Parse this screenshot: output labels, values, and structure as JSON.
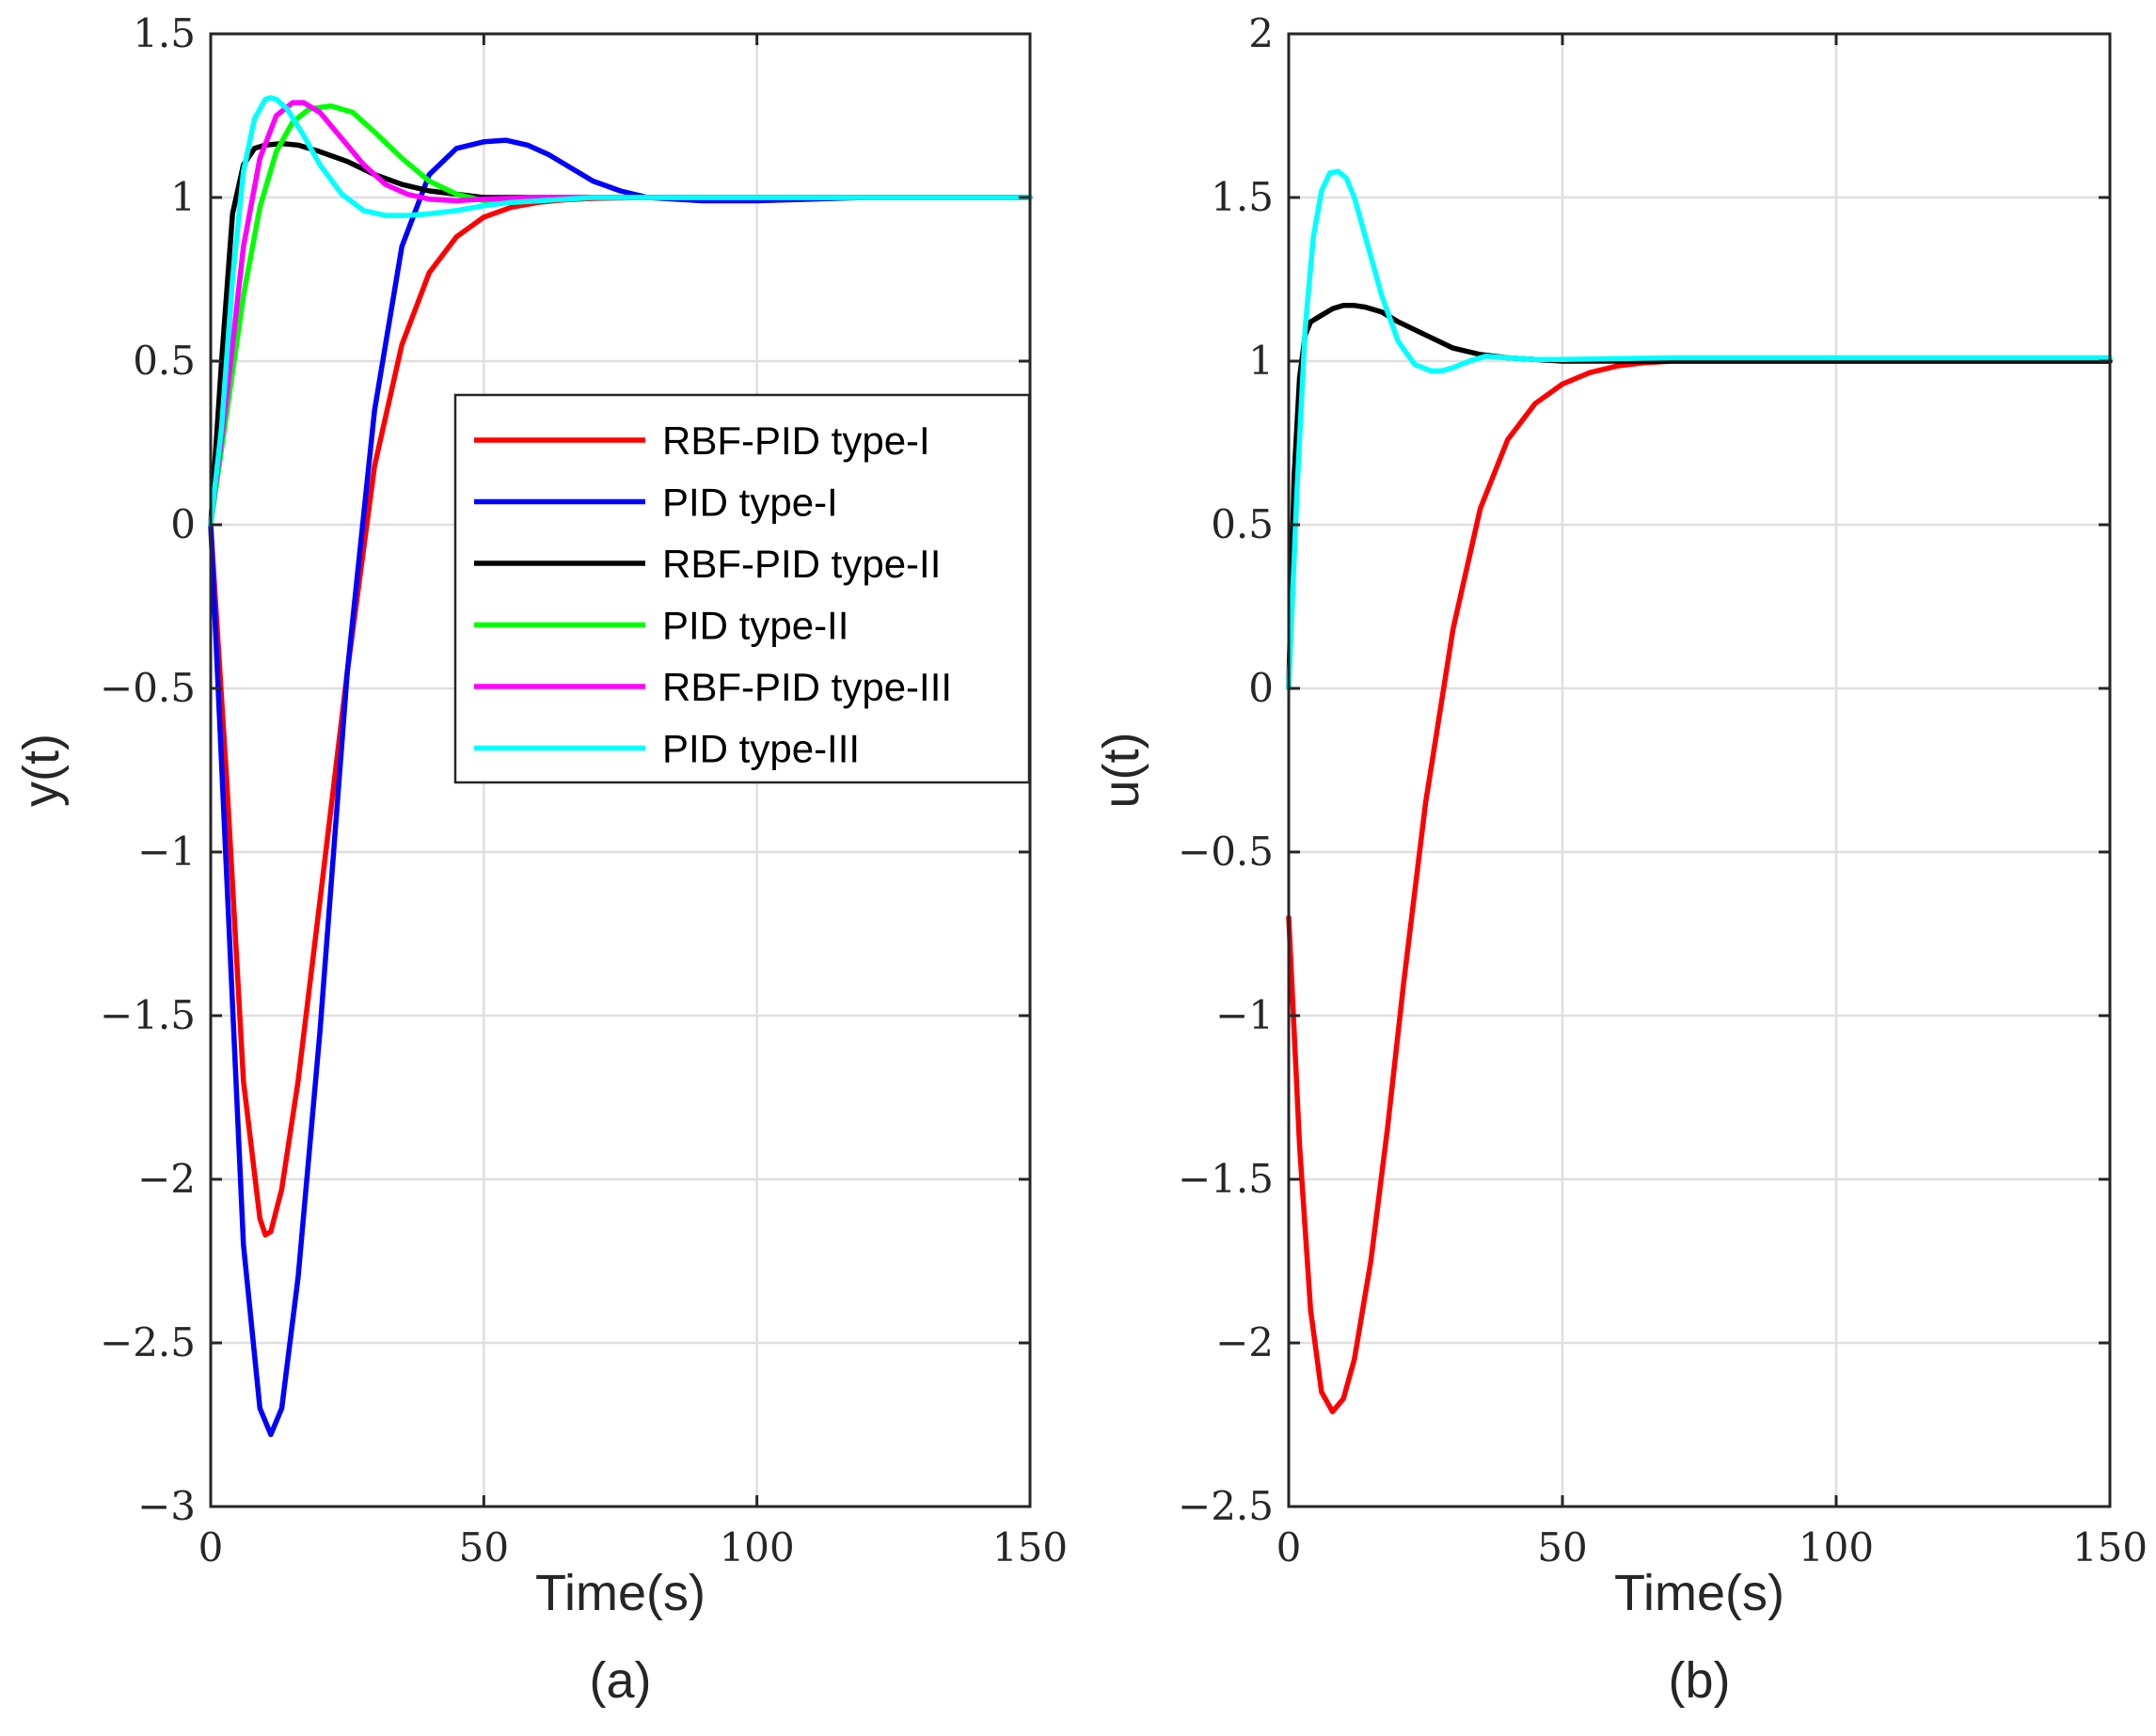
{
  "chart_data": [
    {
      "type": "line",
      "panel": "a",
      "caption": "(a)",
      "xlabel": "Time(s)",
      "ylabel": "y(t)",
      "xlim": [
        0,
        150
      ],
      "ylim": [
        -3,
        1.5
      ],
      "xticks": [
        0,
        50,
        100,
        150
      ],
      "xtick_labels": [
        "0",
        "50",
        "100",
        "150"
      ],
      "yticks": [
        -3,
        -2.5,
        -2,
        -1.5,
        -1,
        -0.5,
        0,
        0.5,
        1,
        1.5
      ],
      "ytick_labels": [
        "−3",
        "−2.5",
        "−2",
        "−1.5",
        "−1",
        "−0.5",
        "0",
        "0.5",
        "1",
        "1.5"
      ],
      "grid": true,
      "legend": {
        "position": "center-right",
        "entries": [
          "RBF-PID type-I",
          "PID type-I",
          "RBF-PID type-II",
          "PID type-II",
          "RBF-PID type-III",
          "PID type-III"
        ]
      },
      "series": [
        {
          "name": "RBF-PID type-I",
          "color": "#ff0000",
          "x": [
            0,
            3,
            6,
            9,
            10,
            11,
            13,
            16,
            20,
            25,
            30,
            35,
            40,
            45,
            50,
            55,
            60,
            65,
            70,
            80,
            90,
            100,
            150
          ],
          "y": [
            0,
            -0.8,
            -1.7,
            -2.12,
            -2.17,
            -2.16,
            -2.03,
            -1.7,
            -1.15,
            -0.45,
            0.18,
            0.55,
            0.77,
            0.88,
            0.94,
            0.97,
            0.985,
            0.993,
            0.997,
            1.0,
            1.0,
            1.0,
            1.0
          ]
        },
        {
          "name": "PID type-I",
          "color": "#0000ff",
          "x": [
            0,
            3,
            6,
            9,
            11,
            13,
            16,
            20,
            25,
            30,
            35,
            40,
            45,
            50,
            54,
            58,
            62,
            66,
            70,
            75,
            80,
            90,
            100,
            110,
            120,
            150
          ],
          "y": [
            0,
            -1.1,
            -2.2,
            -2.7,
            -2.78,
            -2.7,
            -2.3,
            -1.55,
            -0.45,
            0.35,
            0.85,
            1.07,
            1.15,
            1.17,
            1.175,
            1.16,
            1.13,
            1.09,
            1.05,
            1.02,
            1.0,
            0.99,
            0.99,
            0.995,
            1.0,
            1.0
          ]
        },
        {
          "name": "RBF-PID type-II",
          "color": "#000000",
          "x": [
            0,
            2,
            4,
            6,
            8,
            10,
            13,
            16,
            20,
            25,
            30,
            35,
            40,
            45,
            50,
            60,
            70,
            80,
            100,
            150
          ],
          "y": [
            0,
            0.5,
            0.95,
            1.1,
            1.15,
            1.16,
            1.165,
            1.16,
            1.14,
            1.11,
            1.07,
            1.04,
            1.02,
            1.01,
            1.0,
            1.0,
            1.0,
            1.0,
            1.0,
            1.0
          ]
        },
        {
          "name": "PID type-II",
          "color": "#00ff00",
          "x": [
            0,
            3,
            6,
            9,
            12,
            15,
            18,
            22,
            26,
            30,
            35,
            40,
            45,
            50,
            55,
            60,
            70,
            80,
            100,
            150
          ],
          "y": [
            0,
            0.35,
            0.7,
            0.97,
            1.14,
            1.23,
            1.27,
            1.28,
            1.26,
            1.2,
            1.12,
            1.05,
            1.01,
            0.99,
            0.985,
            0.99,
            1.0,
            1.0,
            1.0,
            1.0
          ]
        },
        {
          "name": "RBF-PID type-III",
          "color": "#ff00ff",
          "x": [
            0,
            3,
            6,
            9,
            12,
            15,
            17,
            20,
            24,
            28,
            32,
            36,
            40,
            45,
            50,
            60,
            80,
            100,
            150
          ],
          "y": [
            0,
            0.4,
            0.85,
            1.12,
            1.25,
            1.29,
            1.29,
            1.26,
            1.18,
            1.1,
            1.04,
            1.01,
            0.995,
            0.99,
            0.995,
            1.0,
            1.0,
            1.0,
            1.0
          ]
        },
        {
          "name": "PID type-III",
          "color": "#00ffff",
          "x": [
            0,
            2,
            4,
            6,
            8,
            10,
            11,
            12,
            14,
            17,
            20,
            24,
            28,
            32,
            36,
            40,
            45,
            50,
            55,
            60,
            70,
            80,
            100,
            150
          ],
          "y": [
            0,
            0.3,
            0.75,
            1.08,
            1.24,
            1.3,
            1.305,
            1.3,
            1.27,
            1.19,
            1.1,
            1.01,
            0.96,
            0.945,
            0.945,
            0.95,
            0.96,
            0.975,
            0.985,
            0.99,
            1.0,
            1.0,
            1.0,
            1.0
          ]
        }
      ]
    },
    {
      "type": "line",
      "panel": "b",
      "caption": "(b)",
      "xlabel": "Time(s)",
      "ylabel": "u(t)",
      "xlim": [
        0,
        150
      ],
      "ylim": [
        -2.5,
        2
      ],
      "xticks": [
        0,
        50,
        100,
        150
      ],
      "xtick_labels": [
        "0",
        "50",
        "100",
        "150"
      ],
      "yticks": [
        -2.5,
        -2,
        -1.5,
        -1,
        -0.5,
        0,
        0.5,
        1,
        1.5,
        2
      ],
      "ytick_labels": [
        "−2.5",
        "−2",
        "−1.5",
        "−1",
        "−0.5",
        "0",
        "0.5",
        "1",
        "1.5",
        "2"
      ],
      "grid": true,
      "series": [
        {
          "name": "red",
          "color": "#ff0000",
          "x": [
            0,
            2,
            4,
            6,
            8,
            10,
            12,
            15,
            18,
            21,
            25,
            30,
            35,
            40,
            45,
            50,
            55,
            60,
            65,
            70,
            80,
            100,
            150
          ],
          "y": [
            -0.7,
            -1.4,
            -1.9,
            -2.15,
            -2.21,
            -2.17,
            -2.05,
            -1.75,
            -1.35,
            -0.9,
            -0.35,
            0.18,
            0.55,
            0.76,
            0.87,
            0.93,
            0.965,
            0.985,
            0.995,
            1.0,
            1.0,
            1.0,
            1.0
          ]
        },
        {
          "name": "black",
          "color": "#000000",
          "x": [
            0,
            1,
            2,
            3,
            4,
            6,
            8,
            10,
            12,
            14,
            17,
            20,
            25,
            30,
            35,
            40,
            45,
            50,
            70,
            100,
            150
          ],
          "y": [
            0,
            0.65,
            0.95,
            1.08,
            1.12,
            1.14,
            1.16,
            1.17,
            1.17,
            1.165,
            1.15,
            1.12,
            1.08,
            1.04,
            1.02,
            1.01,
            1.005,
            1.0,
            1.0,
            1.0,
            1.0
          ]
        },
        {
          "name": "cyan",
          "color": "#00ffff",
          "x": [
            0,
            1.5,
            3,
            4.5,
            6,
            7.5,
            9,
            10.5,
            12,
            14,
            17,
            20,
            23,
            26,
            28,
            30,
            33,
            36,
            40,
            45,
            50,
            70,
            100,
            150
          ],
          "y": [
            0,
            0.6,
            1.1,
            1.38,
            1.52,
            1.575,
            1.58,
            1.56,
            1.5,
            1.38,
            1.2,
            1.06,
            0.99,
            0.97,
            0.97,
            0.98,
            1.0,
            1.015,
            1.01,
            1.005,
            1.005,
            1.01,
            1.01,
            1.01
          ]
        }
      ]
    }
  ]
}
